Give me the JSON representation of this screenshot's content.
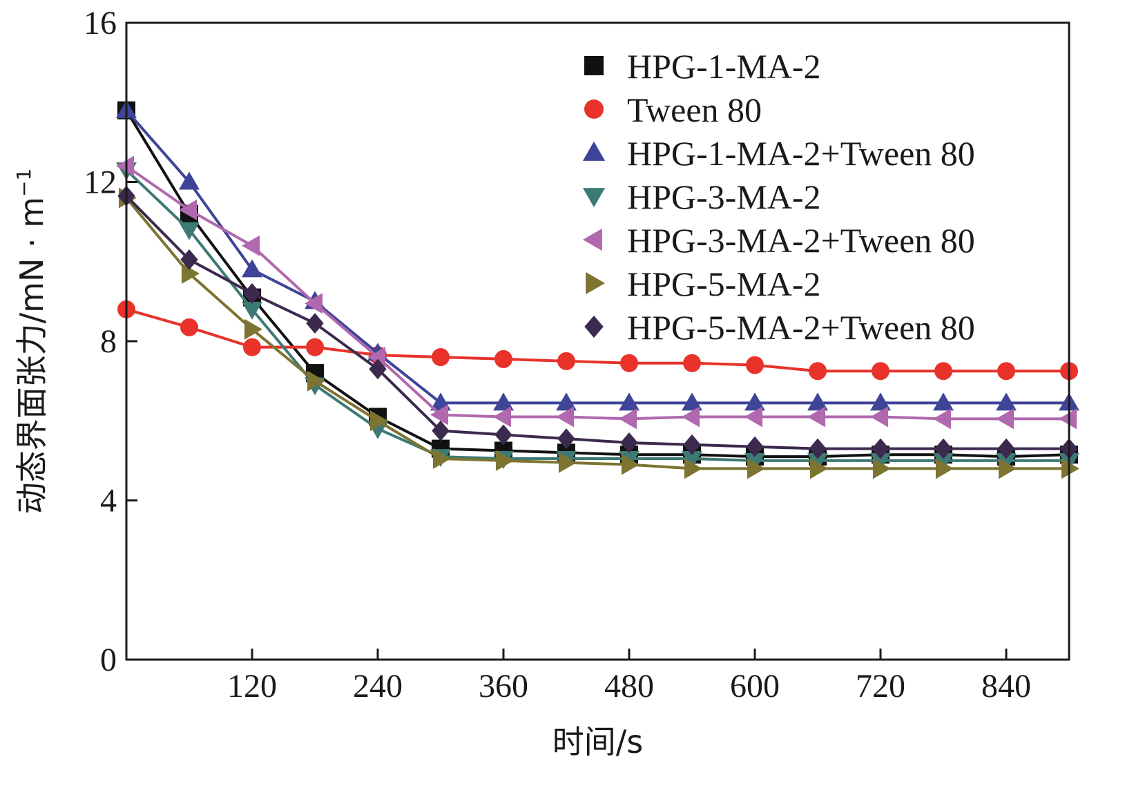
{
  "chart_data": {
    "type": "line",
    "title": "",
    "xlabel": "时间/s",
    "ylabel": "动态界面张力/mN · m",
    "ylabel_superscript": "−1",
    "xlim": [
      0,
      900
    ],
    "ylim": [
      0,
      16
    ],
    "x_ticks": [
      120,
      240,
      360,
      480,
      600,
      720,
      840
    ],
    "y_ticks": [
      0,
      4,
      8,
      12,
      16
    ],
    "grid": false,
    "legend_position": "top-right",
    "x": [
      0,
      60,
      120,
      180,
      240,
      300,
      360,
      420,
      480,
      540,
      600,
      660,
      720,
      780,
      840,
      900
    ],
    "series": [
      {
        "name": "HPG-1-MA-2",
        "marker": "square",
        "color": "#111111",
        "values": [
          13.8,
          11.2,
          9.1,
          7.2,
          6.1,
          5.3,
          5.25,
          5.2,
          5.15,
          5.15,
          5.1,
          5.1,
          5.15,
          5.15,
          5.1,
          5.15
        ]
      },
      {
        "name": "Tween 80",
        "marker": "circle",
        "color": "#e8322a",
        "values": [
          8.8,
          8.35,
          7.85,
          7.85,
          7.65,
          7.6,
          7.55,
          7.5,
          7.45,
          7.45,
          7.4,
          7.25,
          7.25,
          7.25,
          7.25,
          7.25
        ]
      },
      {
        "name": "HPG-1-MA-2+Tween 80",
        "marker": "triangle-up",
        "color": "#3e4497",
        "values": [
          13.8,
          12.0,
          9.8,
          9.0,
          7.7,
          6.45,
          6.45,
          6.45,
          6.45,
          6.45,
          6.45,
          6.45,
          6.45,
          6.45,
          6.45,
          6.45
        ]
      },
      {
        "name": "HPG-3-MA-2",
        "marker": "triangle-down",
        "color": "#3d7a73",
        "values": [
          12.3,
          10.8,
          8.8,
          6.9,
          5.8,
          5.1,
          5.05,
          5.05,
          5.05,
          5.05,
          5.0,
          5.0,
          5.0,
          5.0,
          5.0,
          5.0
        ]
      },
      {
        "name": "HPG-3-MA-2+Tween 80",
        "marker": "triangle-left",
        "color": "#b068ae",
        "values": [
          12.4,
          11.3,
          10.4,
          8.95,
          7.6,
          6.15,
          6.1,
          6.1,
          6.05,
          6.1,
          6.1,
          6.1,
          6.1,
          6.05,
          6.05,
          6.05
        ]
      },
      {
        "name": "HPG-5-MA-2",
        "marker": "triangle-right",
        "color": "#7e7431",
        "values": [
          11.6,
          9.7,
          8.3,
          7.0,
          6.0,
          5.05,
          5.0,
          4.95,
          4.9,
          4.8,
          4.8,
          4.8,
          4.8,
          4.8,
          4.8,
          4.8
        ]
      },
      {
        "name": "HPG-5-MA-2+Tween 80",
        "marker": "diamond",
        "color": "#3c2a4e",
        "values": [
          11.65,
          10.05,
          9.2,
          8.45,
          7.3,
          5.75,
          5.65,
          5.55,
          5.45,
          5.4,
          5.35,
          5.3,
          5.3,
          5.3,
          5.3,
          5.3
        ]
      }
    ]
  }
}
